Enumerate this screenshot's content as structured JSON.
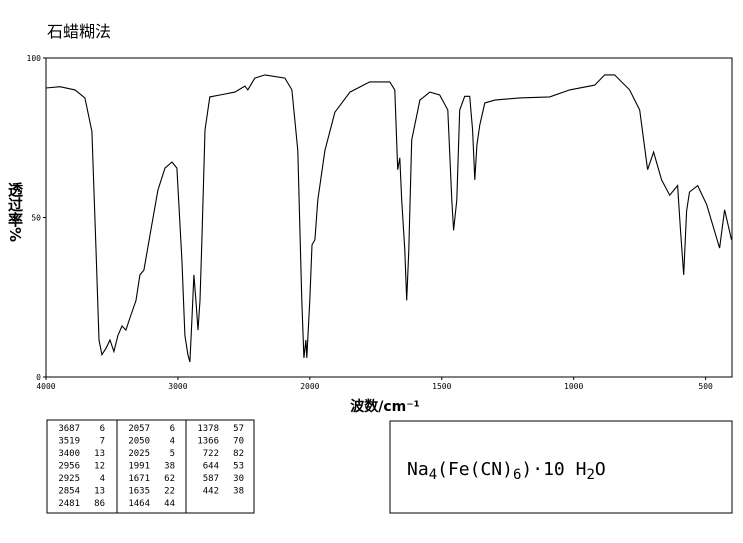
{
  "chart_data": {
    "type": "line",
    "title": "石蜡糊法",
    "xlabel": "波数/cm⁻¹",
    "ylabel": "透过率%",
    "x": [
      4000,
      3894,
      3780,
      3705,
      3652,
      3621,
      3598,
      3576,
      3545,
      3515,
      3485,
      3455,
      3424,
      3394,
      3364,
      3318,
      3288,
      3258,
      3212,
      3152,
      3098,
      3045,
      3008,
      2970,
      2947,
      2924,
      2909,
      2894,
      2879,
      2864,
      2848,
      2833,
      2818,
      2795,
      2758,
      2682,
      2568,
      2492,
      2470,
      2417,
      2341,
      2189,
      2136,
      2091,
      2061,
      2045,
      2030,
      2023,
      2000,
      1992,
      1981,
      1970,
      1943,
      1905,
      1848,
      1773,
      1697,
      1678,
      1667,
      1659,
      1652,
      1640,
      1633,
      1625,
      1614,
      1583,
      1545,
      1508,
      1477,
      1462,
      1455,
      1443,
      1432,
      1413,
      1394,
      1383,
      1375,
      1367,
      1356,
      1337,
      1299,
      1205,
      1091,
      1015,
      920,
      883,
      845,
      788,
      750,
      720,
      697,
      667,
      636,
      606,
      595,
      583,
      572,
      561,
      530,
      496,
      447,
      428,
      402
    ],
    "values": [
      90.6,
      91,
      90,
      87.5,
      77,
      40,
      11.6,
      7,
      9,
      11.6,
      8,
      13,
      16,
      14.7,
      18.5,
      24,
      32,
      33.5,
      44.5,
      58.6,
      65.5,
      67.4,
      65.5,
      36.7,
      13,
      7,
      4.7,
      17.9,
      32,
      24,
      14.7,
      24,
      43,
      77.4,
      87.8,
      88.4,
      89.3,
      91.2,
      90,
      93.7,
      94.7,
      93.7,
      90,
      71,
      24,
      6,
      11.6,
      6,
      24,
      41.4,
      43,
      55.5,
      71,
      83,
      89.3,
      92.5,
      92.5,
      90,
      65,
      68.7,
      55.5,
      39.8,
      24,
      39.8,
      74.3,
      86.8,
      89.3,
      88.4,
      83.7,
      55.5,
      46,
      55.5,
      83.7,
      88,
      88,
      77.4,
      61.8,
      72.7,
      79,
      85.9,
      86.8,
      87.5,
      87.8,
      90,
      91.5,
      94.7,
      94.7,
      90,
      83.7,
      65,
      70.5,
      61.8,
      57,
      60,
      46,
      32,
      52,
      58,
      60,
      54,
      40.4,
      52.4,
      43
    ],
    "color": "#000000",
    "xlim": [
      4000,
      400
    ],
    "xbreak": 2000,
    "xticks": [
      4000,
      3000,
      2000,
      1500,
      1000,
      500
    ],
    "ylim": [
      0,
      100
    ],
    "yticks": [
      0,
      50,
      100
    ]
  },
  "peak_table": {
    "columns": [
      [
        [
          3687,
          6
        ],
        [
          3519,
          7
        ],
        [
          3400,
          13
        ],
        [
          2956,
          12
        ],
        [
          2925,
          4
        ],
        [
          2854,
          13
        ],
        [
          2481,
          86
        ]
      ],
      [
        [
          2057,
          6
        ],
        [
          2050,
          4
        ],
        [
          2025,
          5
        ],
        [
          1991,
          38
        ],
        [
          1671,
          62
        ],
        [
          1635,
          22
        ],
        [
          1464,
          44
        ]
      ],
      [
        [
          1378,
          57
        ],
        [
          1366,
          70
        ],
        [
          722,
          82
        ],
        [
          644,
          53
        ],
        [
          587,
          30
        ],
        [
          442,
          38
        ]
      ]
    ]
  },
  "formula": [
    "Na",
    "4",
    "(Fe(CN)",
    "6",
    ")·10 H",
    "2",
    "O"
  ]
}
